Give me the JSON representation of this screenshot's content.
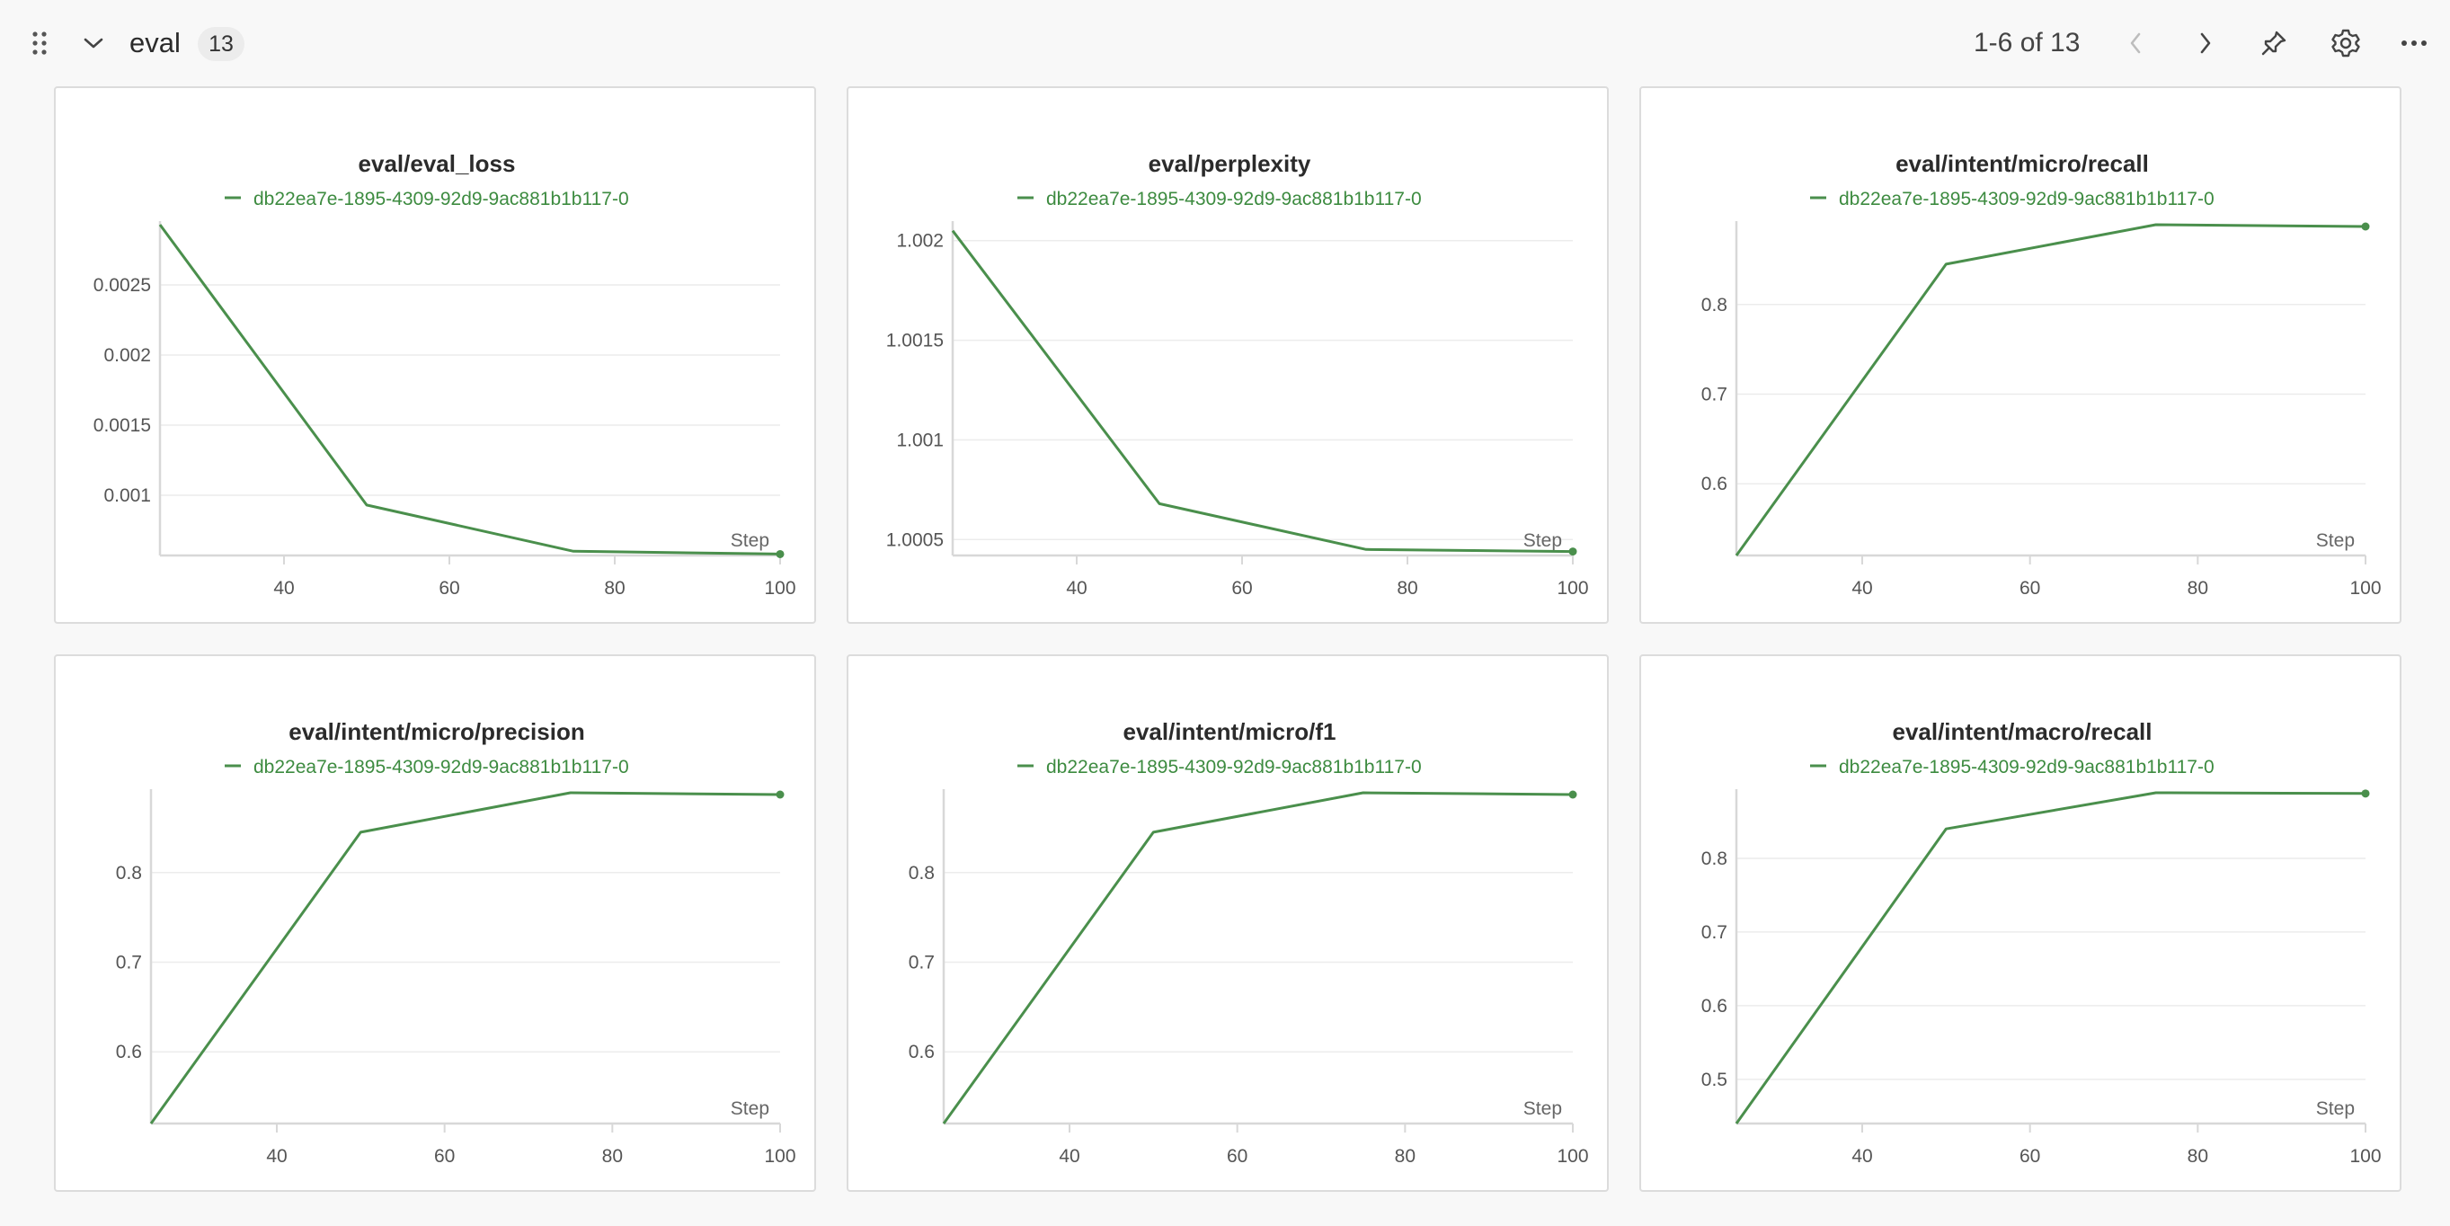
{
  "header": {
    "section_title": "eval",
    "count_badge": "13",
    "pager_text": "1-6 of 13",
    "icons": {
      "drag": "drag-handle-icon",
      "collapse": "chevron-down-icon",
      "prev": "chevron-left-icon",
      "next": "chevron-right-icon",
      "pin": "pin-icon",
      "settings": "gear-icon",
      "more": "more-horizontal-icon"
    }
  },
  "colors": {
    "series": "#4a8f4c",
    "grid": "#ececec",
    "axis": "#d8d8d8",
    "panel_border": "#dcdcdc",
    "pager_prev_disabled": "#bdbdbd"
  },
  "chart_data": [
    {
      "type": "line",
      "title": "eval/eval_loss",
      "xlabel": "Step",
      "xlim": [
        25,
        100
      ],
      "xticks": [
        40,
        60,
        80,
        100
      ],
      "ylim": [
        0.00057,
        0.00293
      ],
      "yticks": [
        0.001,
        0.0015,
        0.002,
        0.0025
      ],
      "ytick_labels": [
        "0.001",
        "0.0015",
        "0.002",
        "0.0025"
      ],
      "series": [
        {
          "name": "db22ea7e-1895-4309-92d9-9ac881b1b117-0",
          "x": [
            25,
            50,
            75,
            100
          ],
          "y": [
            0.00293,
            0.00093,
            0.0006,
            0.00058
          ]
        }
      ]
    },
    {
      "type": "line",
      "title": "eval/perplexity",
      "xlabel": "Step",
      "xlim": [
        25,
        100
      ],
      "xticks": [
        40,
        60,
        80,
        100
      ],
      "ylim": [
        1.00042,
        1.00208
      ],
      "yticks": [
        1.0005,
        1.001,
        1.0015,
        1.002
      ],
      "ytick_labels": [
        "1.0005",
        "1.001",
        "1.0015",
        "1.002"
      ],
      "series": [
        {
          "name": "db22ea7e-1895-4309-92d9-9ac881b1b117-0",
          "x": [
            25,
            50,
            75,
            100
          ],
          "y": [
            1.00205,
            1.00068,
            1.00045,
            1.00044
          ]
        }
      ]
    },
    {
      "type": "line",
      "title": "eval/intent/micro/recall",
      "xlabel": "Step",
      "xlim": [
        25,
        100
      ],
      "xticks": [
        40,
        60,
        80,
        100
      ],
      "ylim": [
        0.52,
        0.889
      ],
      "yticks": [
        0.6,
        0.7,
        0.8
      ],
      "ytick_labels": [
        "0.6",
        "0.7",
        "0.8"
      ],
      "series": [
        {
          "name": "db22ea7e-1895-4309-92d9-9ac881b1b117-0",
          "x": [
            25,
            50,
            75,
            100
          ],
          "y": [
            0.52,
            0.845,
            0.889,
            0.887
          ]
        }
      ]
    },
    {
      "type": "line",
      "title": "eval/intent/micro/precision",
      "xlabel": "Step",
      "xlim": [
        25,
        100
      ],
      "xticks": [
        40,
        60,
        80,
        100
      ],
      "ylim": [
        0.52,
        0.889
      ],
      "yticks": [
        0.6,
        0.7,
        0.8
      ],
      "ytick_labels": [
        "0.6",
        "0.7",
        "0.8"
      ],
      "series": [
        {
          "name": "db22ea7e-1895-4309-92d9-9ac881b1b117-0",
          "x": [
            25,
            50,
            75,
            100
          ],
          "y": [
            0.52,
            0.845,
            0.889,
            0.887
          ]
        }
      ]
    },
    {
      "type": "line",
      "title": "eval/intent/micro/f1",
      "xlabel": "Step",
      "xlim": [
        25,
        100
      ],
      "xticks": [
        40,
        60,
        80,
        100
      ],
      "ylim": [
        0.52,
        0.889
      ],
      "yticks": [
        0.6,
        0.7,
        0.8
      ],
      "ytick_labels": [
        "0.6",
        "0.7",
        "0.8"
      ],
      "series": [
        {
          "name": "db22ea7e-1895-4309-92d9-9ac881b1b117-0",
          "x": [
            25,
            50,
            75,
            100
          ],
          "y": [
            0.52,
            0.845,
            0.889,
            0.887
          ]
        }
      ]
    },
    {
      "type": "line",
      "title": "eval/intent/macro/recall",
      "xlabel": "Step",
      "xlim": [
        25,
        100
      ],
      "xticks": [
        40,
        60,
        80,
        100
      ],
      "ylim": [
        0.44,
        0.889
      ],
      "yticks": [
        0.5,
        0.6,
        0.7,
        0.8
      ],
      "ytick_labels": [
        "0.5",
        "0.6",
        "0.7",
        "0.8"
      ],
      "series": [
        {
          "name": "db22ea7e-1895-4309-92d9-9ac881b1b117-0",
          "x": [
            25,
            50,
            75,
            100
          ],
          "y": [
            0.44,
            0.84,
            0.889,
            0.888
          ]
        }
      ]
    }
  ]
}
